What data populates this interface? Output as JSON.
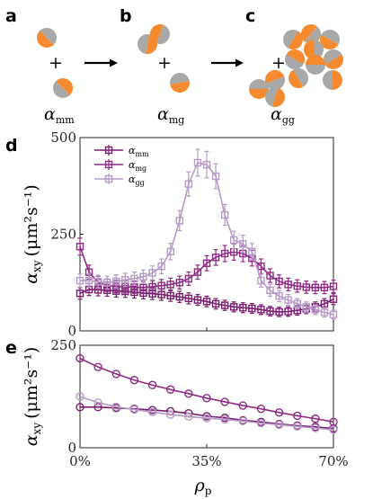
{
  "colors": {
    "mm": "#7B1C72",
    "mg": "#8E2A84",
    "gg": "#B79AC8",
    "orange": "#F58A2E",
    "gray": "#A8A8A8",
    "arrow": "#000000"
  },
  "panel_labels": {
    "a": "a",
    "b": "b",
    "c": "c",
    "d": "d",
    "e": "e"
  },
  "schematic": {
    "labels": {
      "a": {
        "base": "α",
        "sub": "mm"
      },
      "b": {
        "base": "α",
        "sub": "mg"
      },
      "c": {
        "base": "α",
        "sub": "gg"
      }
    },
    "plus_sign": "+"
  },
  "chart_data": [
    {
      "type": "line",
      "panel": "d",
      "ylabel": "α",
      "ylabel_sub": "xy",
      "ylabel_units": "(μm²s⁻¹)",
      "xlim": [
        0,
        70
      ],
      "ylim": [
        0,
        500
      ],
      "yticks": [
        0,
        250,
        500
      ],
      "legend_position": "top-left",
      "error_bars": true,
      "x": [
        0,
        2.5,
        5,
        7.5,
        10,
        12.5,
        15,
        17.5,
        20,
        22.5,
        25,
        27.5,
        30,
        32.5,
        35,
        37.5,
        40,
        42.5,
        45,
        47.5,
        50,
        52.5,
        55,
        57.5,
        60,
        62.5,
        65,
        67.5,
        70
      ],
      "series": [
        {
          "name": "α_mm",
          "label_base": "α",
          "label_sub": "mm",
          "color_key": "mm",
          "marker": "square",
          "values": [
            97,
            107,
            106,
            105,
            103,
            102,
            100,
            98,
            96,
            94,
            91,
            88,
            84,
            80,
            76,
            70,
            66,
            62,
            60,
            58,
            55,
            51,
            49,
            50,
            53,
            57,
            62,
            70,
            82
          ]
        },
        {
          "name": "α_mg",
          "label_base": "α",
          "label_sub": "mg",
          "color_key": "mg",
          "marker": "square",
          "values": [
            218,
            152,
            125,
            118,
            115,
            114,
            113,
            112,
            114,
            117,
            120,
            125,
            135,
            152,
            175,
            190,
            200,
            204,
            200,
            188,
            167,
            143,
            128,
            120,
            116,
            113,
            112,
            112,
            115
          ]
        },
        {
          "name": "α_gg",
          "label_base": "α",
          "label_sub": "gg",
          "color_key": "gg",
          "marker": "square",
          "values": [
            130,
            130,
            127,
            125,
            128,
            132,
            135,
            140,
            150,
            167,
            205,
            285,
            380,
            435,
            430,
            400,
            300,
            235,
            225,
            205,
            130,
            105,
            90,
            80,
            70,
            62,
            55,
            48,
            42
          ]
        }
      ]
    },
    {
      "type": "line",
      "panel": "e",
      "ylabel": "α",
      "ylabel_sub": "xy",
      "ylabel_units": "(μm²s⁻¹)",
      "xlabel": "ρ",
      "xlabel_sub": "p",
      "xlim": [
        0,
        70
      ],
      "ylim": [
        0,
        250
      ],
      "yticks": [
        0,
        250
      ],
      "xticks": [
        0,
        35,
        70
      ],
      "xticklabels": [
        "0%",
        "35%",
        "70%"
      ],
      "x": [
        0,
        5,
        10,
        15,
        20,
        25,
        30,
        35,
        40,
        45,
        50,
        55,
        60,
        65,
        70
      ],
      "series": [
        {
          "name": "α_mm",
          "color_key": "mm",
          "marker": "circle",
          "values": [
            99,
            99,
            97,
            95,
            92,
            89,
            84,
            77,
            73,
            67,
            63,
            58,
            54,
            51,
            47
          ]
        },
        {
          "name": "α_mg",
          "color_key": "mg",
          "marker": "circle",
          "values": [
            218,
            197,
            180,
            165,
            153,
            142,
            132,
            121,
            112,
            103,
            95,
            86,
            78,
            71,
            63
          ]
        },
        {
          "name": "α_gg",
          "color_key": "gg",
          "marker": "circle",
          "values": [
            125,
            110,
            100,
            93,
            87,
            81,
            76,
            72,
            69,
            65,
            60,
            56,
            52,
            48,
            44
          ]
        }
      ]
    }
  ]
}
